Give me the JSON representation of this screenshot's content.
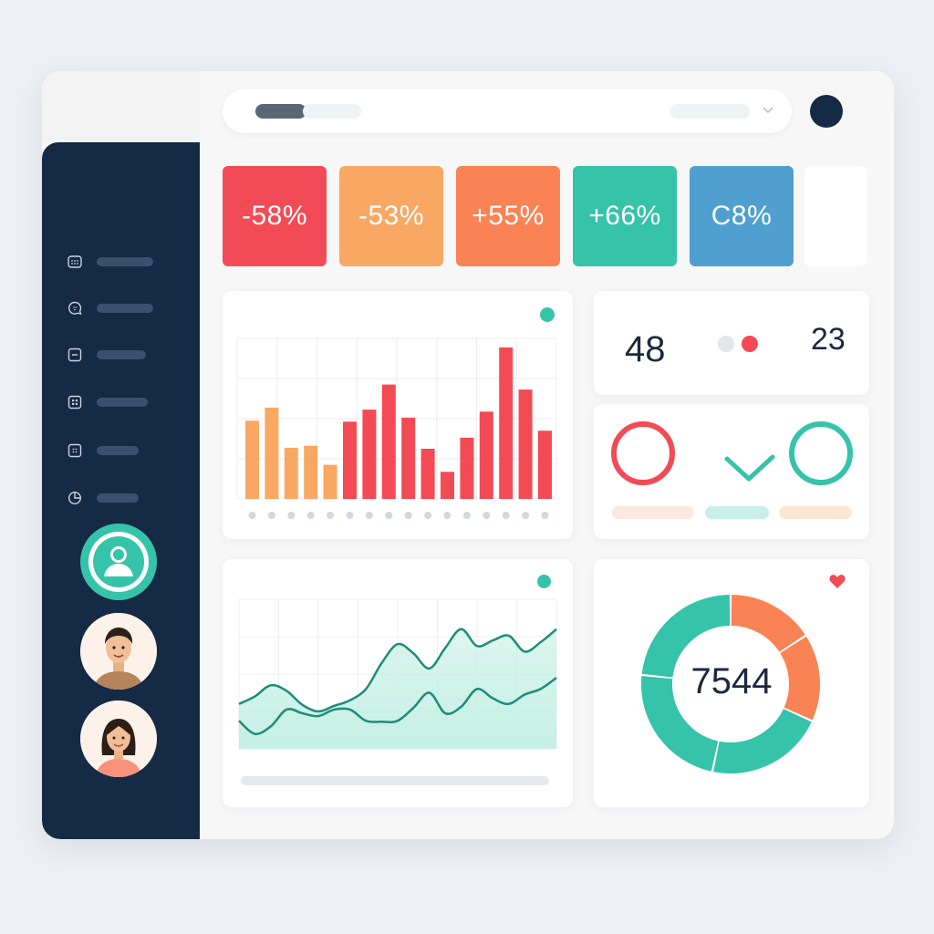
{
  "kpis": [
    {
      "label": "-58%",
      "color": "#f24b55"
    },
    {
      "label": "-53%",
      "color": "#f9a863"
    },
    {
      "label": "+55%",
      "color": "#f98355"
    },
    {
      "label": "+66%",
      "color": "#35c3aa"
    },
    {
      "label": "C8%",
      "color": "#4fa0cf"
    }
  ],
  "nav": {
    "icons": [
      "grid-icon",
      "chat-icon",
      "minus-box-icon",
      "apps-icon",
      "dots-box-icon",
      "pie-chart-icon"
    ]
  },
  "stats": {
    "left_value": "48",
    "right_value": "23"
  },
  "donut": {
    "center_value": "7544"
  },
  "colors": {
    "accent_teal": "#35c3aa",
    "accent_red": "#f24b55",
    "accent_orange": "#f98355",
    "navy": "#142a45"
  },
  "chart_data": [
    {
      "type": "bar",
      "values": [
        78,
        91,
        51,
        53,
        34,
        77,
        89,
        114,
        81,
        50,
        27,
        61,
        87,
        151,
        109,
        68
      ],
      "colors": [
        "#f9a863",
        "#f9a863",
        "#f9a863",
        "#f9a863",
        "#f9a863",
        "#f24b55",
        "#f24b55",
        "#f24b55",
        "#f24b55",
        "#f24b55",
        "#f24b55",
        "#f24b55",
        "#f24b55",
        "#f24b55",
        "#f24b55",
        "#f24b55"
      ]
    },
    {
      "type": "area",
      "series": [
        {
          "values": [
            48,
            56,
            68,
            62,
            47,
            40,
            46,
            52,
            64,
            92,
            112,
            102,
            86,
            108,
            128,
            110,
            116,
            121,
            104,
            114,
            128
          ]
        },
        {
          "values": [
            30,
            16,
            24,
            42,
            38,
            35,
            42,
            42,
            30,
            29,
            30,
            44,
            60,
            38,
            45,
            64,
            54,
            48,
            58,
            64,
            76
          ]
        }
      ]
    },
    {
      "type": "pie",
      "values": [
        17,
        17,
        23,
        25,
        25
      ],
      "colors": [
        "#f98355",
        "#f98355",
        "#35c3aa",
        "#35c3aa",
        "#35c3aa"
      ]
    }
  ]
}
